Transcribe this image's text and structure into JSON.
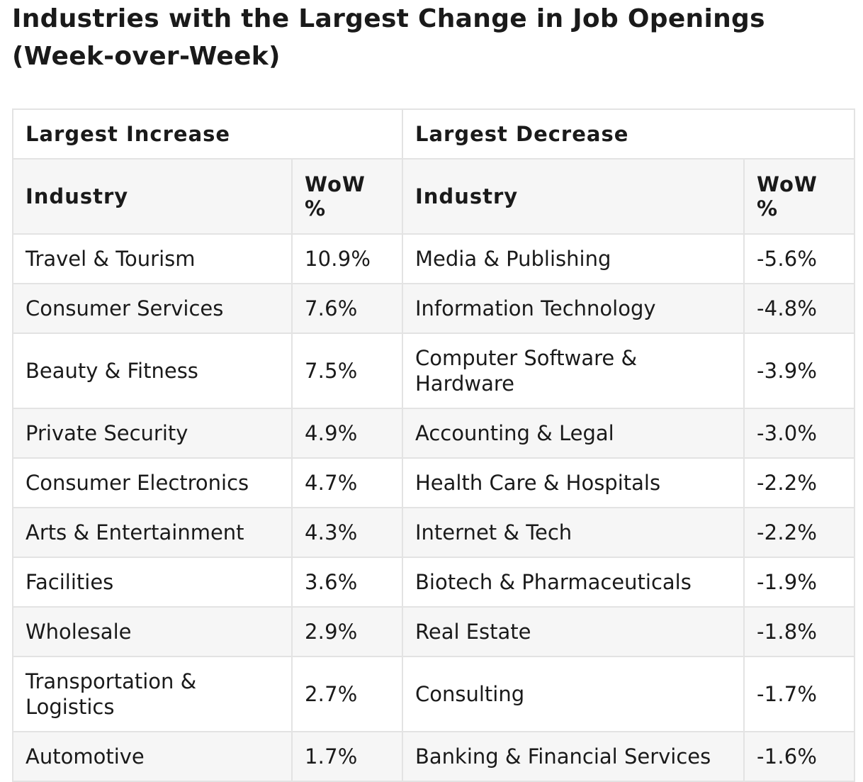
{
  "title": "Industries with the Largest Change in Job Openings (Week-over-Week)",
  "groups": {
    "increase": "Largest Increase",
    "decrease": "Largest Decrease"
  },
  "columns": {
    "industry": "Industry",
    "wow": "WoW %"
  },
  "rows": [
    {
      "inc_industry": "Travel & Tourism",
      "inc_wow": "10.9%",
      "dec_industry": "Media & Publishing",
      "dec_wow": "-5.6%"
    },
    {
      "inc_industry": "Consumer Services",
      "inc_wow": "7.6%",
      "dec_industry": "Information Technology",
      "dec_wow": "-4.8%"
    },
    {
      "inc_industry": "Beauty & Fitness",
      "inc_wow": "7.5%",
      "dec_industry": "Computer Software & Hardware",
      "dec_wow": "-3.9%"
    },
    {
      "inc_industry": "Private Security",
      "inc_wow": "4.9%",
      "dec_industry": "Accounting & Legal",
      "dec_wow": "-3.0%"
    },
    {
      "inc_industry": "Consumer Electronics",
      "inc_wow": "4.7%",
      "dec_industry": "Health Care & Hospitals",
      "dec_wow": "-2.2%"
    },
    {
      "inc_industry": "Arts & Entertainment",
      "inc_wow": "4.3%",
      "dec_industry": "Internet & Tech",
      "dec_wow": "-2.2%"
    },
    {
      "inc_industry": "Facilities",
      "inc_wow": "3.6%",
      "dec_industry": "Biotech & Pharmaceuticals",
      "dec_wow": "-1.9%"
    },
    {
      "inc_industry": "Wholesale",
      "inc_wow": "2.9%",
      "dec_industry": "Real Estate",
      "dec_wow": "-1.8%"
    },
    {
      "inc_industry": "Transportation & Logistics",
      "inc_wow": "2.7%",
      "dec_industry": "Consulting",
      "dec_wow": "-1.7%"
    },
    {
      "inc_industry": "Automotive",
      "inc_wow": "1.7%",
      "dec_industry": "Banking & Financial Services",
      "dec_wow": "-1.6%"
    }
  ]
}
